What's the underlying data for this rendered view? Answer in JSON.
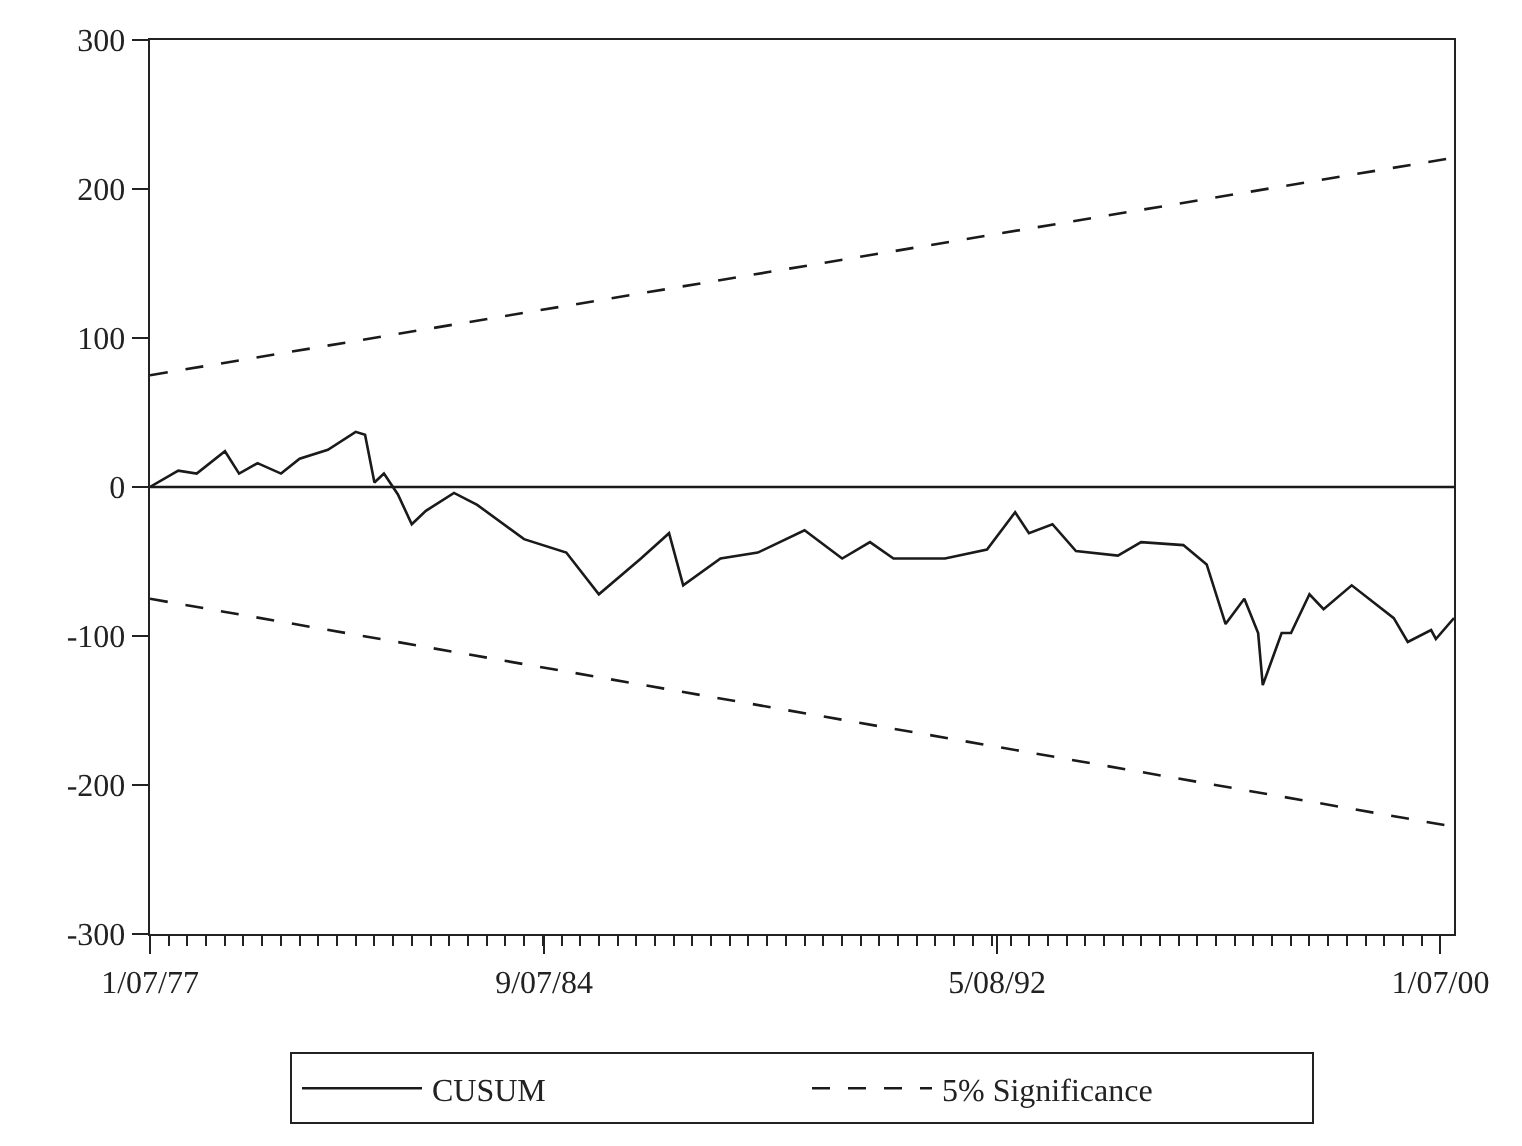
{
  "chart_data": {
    "type": "line",
    "x": [
      "1977-07",
      "1978-01",
      "1978-05",
      "1978-11",
      "1979-02",
      "1979-06",
      "1979-11",
      "1980-03",
      "1980-09",
      "1981-03",
      "1981-05",
      "1981-07",
      "1981-09",
      "1981-12",
      "1982-03",
      "1982-06",
      "1982-12",
      "1983-05",
      "1984-03",
      "1984-12",
      "1985-07",
      "1986-04",
      "1986-10",
      "1987-01",
      "1987-09",
      "1988-05",
      "1989-03",
      "1989-11",
      "1990-05",
      "1990-10",
      "1991-09",
      "1992-06",
      "1992-12",
      "1993-03",
      "1993-08",
      "1994-01",
      "1994-10",
      "1995-03",
      "1995-12",
      "1996-05",
      "1996-09",
      "1997-01",
      "1997-04",
      "1997-05",
      "1997-09",
      "1997-11",
      "1998-03",
      "1998-06",
      "1998-12",
      "1999-09",
      "1999-12",
      "2000-05",
      "2000-06",
      "2000-09-27"
    ],
    "series": [
      {
        "name": "CUSUM",
        "color": "#1a1a1a",
        "line_style": "solid",
        "values": [
          0,
          11,
          9,
          24,
          9,
          16,
          9,
          19,
          25,
          37,
          35,
          3,
          9,
          -5,
          -25,
          -16,
          -4,
          -12,
          -35,
          -44,
          -72,
          -48,
          -31,
          -66,
          -48,
          -44,
          -29,
          -48,
          -37,
          -48,
          -48,
          -42,
          -17,
          -31,
          -25,
          -43,
          -46,
          -37,
          -39,
          -52,
          -92,
          -75,
          -98,
          -133,
          -98,
          -98,
          -72,
          -82,
          -66,
          -88,
          -104,
          -96,
          -102,
          -88
        ]
      },
      {
        "name": "5% Significance",
        "color": "#1a1a1a",
        "line_style": "dashed",
        "x": [
          "1977-07-01",
          "2000-09-27"
        ],
        "values": [
          75,
          221
        ]
      },
      {
        "color": "#1a1a1a",
        "line_style": "dashed",
        "x": [
          "1977-07-01",
          "2000-09-27"
        ],
        "values": [
          -75,
          -228
        ]
      }
    ],
    "xlim": [
      "1977-07-01",
      "2000-09-27"
    ],
    "xticks": [
      {
        "value": "1977-07-01",
        "label": "1/07/77"
      },
      {
        "value": "1984-07-09",
        "label": "9/07/84"
      },
      {
        "value": "1992-08-05",
        "label": "5/08/92"
      },
      {
        "value": "2000-07-01",
        "label": "1/07/00"
      }
    ],
    "ylim": [
      -300,
      300
    ],
    "yticks": [
      -300,
      -200,
      -100,
      0,
      100,
      200,
      300
    ],
    "ref_lines": [
      {
        "axis": "y",
        "value": 0,
        "color": "#1a1a1a",
        "line_style": "solid"
      }
    ],
    "grid": false,
    "legend": "bottom",
    "marker": "none"
  }
}
